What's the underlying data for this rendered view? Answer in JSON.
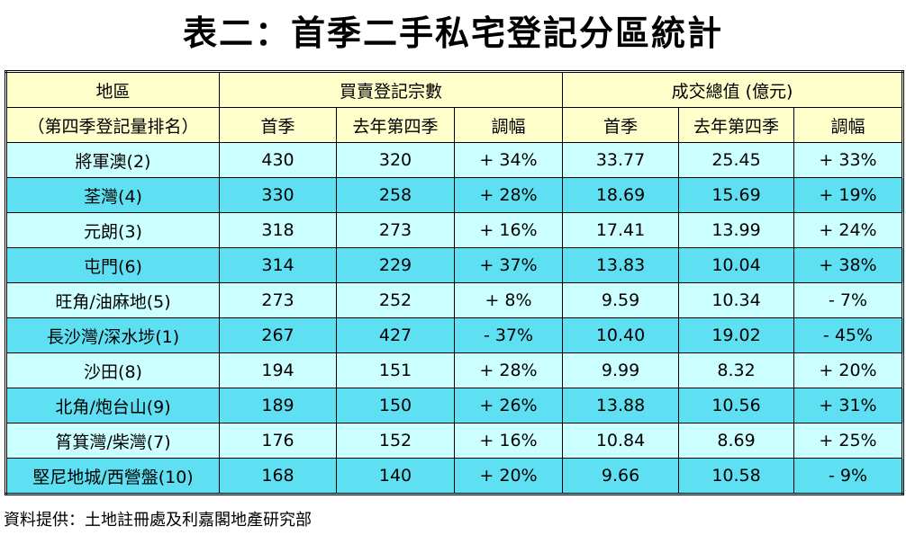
{
  "title": "表二：首季二手私宅登記分區統計",
  "table": {
    "header_top": [
      "地區",
      "買賣登記宗數",
      "成交總值 (億元)"
    ],
    "header_sub": [
      "（第四季登記量排名）",
      "首季",
      "去年第四季",
      "調幅",
      "首季",
      "去年第四季",
      "調幅"
    ],
    "rows": [
      [
        "將軍澳(2)",
        "430",
        "320",
        "+ 34%",
        "33.77",
        "25.45",
        "+ 33%"
      ],
      [
        "荃灣(4)",
        "330",
        "258",
        "+ 28%",
        "18.69",
        "15.69",
        "+ 19%"
      ],
      [
        "元朗(3)",
        "318",
        "273",
        "+ 16%",
        "17.41",
        "13.99",
        "+ 24%"
      ],
      [
        "屯門(6)",
        "314",
        "229",
        "+ 37%",
        "13.83",
        "10.04",
        "+ 38%"
      ],
      [
        "旺角/油麻地(5)",
        "273",
        "252",
        "+ 8%",
        "9.59",
        "10.34",
        "- 7%"
      ],
      [
        "長沙灣/深水埗(1)",
        "267",
        "427",
        "- 37%",
        "10.40",
        "19.02",
        "- 45%"
      ],
      [
        "沙田(8)",
        "194",
        "151",
        "+ 28%",
        "9.99",
        "8.32",
        "+ 20%"
      ],
      [
        "北角/炮台山(9)",
        "189",
        "150",
        "+ 26%",
        "13.88",
        "10.56",
        "+ 31%"
      ],
      [
        "筲箕灣/柴灣(7)",
        "176",
        "152",
        "+ 16%",
        "10.84",
        "8.69",
        "+ 25%"
      ],
      [
        "堅尼地城/西營盤(10)",
        "168",
        "140",
        "+ 20%",
        "9.66",
        "10.58",
        "- 9%"
      ]
    ]
  },
  "source": "資料提供：土地註冊處及利嘉閣地產研究部"
}
